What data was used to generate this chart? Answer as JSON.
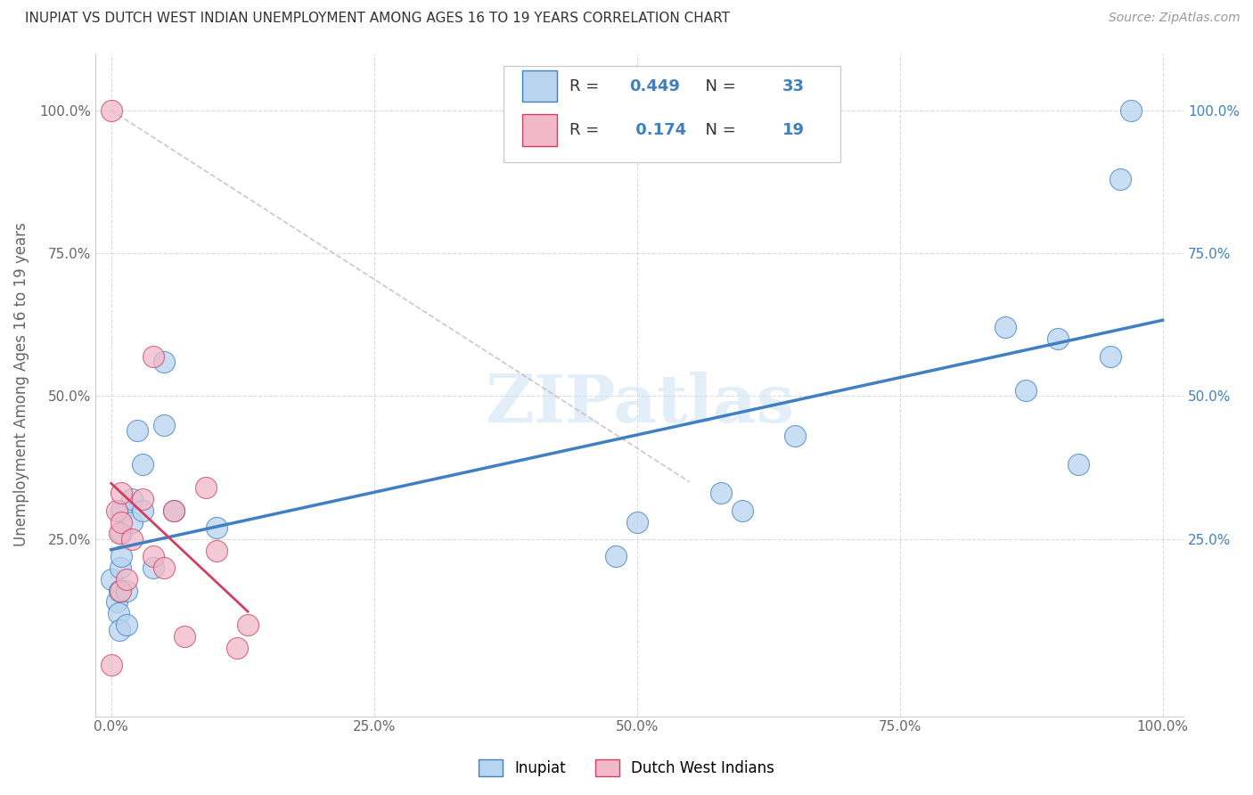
{
  "title": "INUPIAT VS DUTCH WEST INDIAN UNEMPLOYMENT AMONG AGES 16 TO 19 YEARS CORRELATION CHART",
  "source": "Source: ZipAtlas.com",
  "ylabel": "Unemployment Among Ages 16 to 19 years",
  "watermark": "ZIPatlas",
  "inupiat_R": 0.449,
  "inupiat_N": 33,
  "dutch_R": 0.174,
  "dutch_N": 19,
  "inupiat_color": "#b8d4ee",
  "dutch_color": "#f0b8c8",
  "inupiat_line_color": "#4080c0",
  "dutch_line_color": "#d04060",
  "inupiat_x": [
    0.0,
    0.005,
    0.007,
    0.008,
    0.008,
    0.009,
    0.01,
    0.01,
    0.01,
    0.015,
    0.015,
    0.02,
    0.02,
    0.025,
    0.03,
    0.03,
    0.04,
    0.05,
    0.05,
    0.06,
    0.1,
    0.48,
    0.5,
    0.58,
    0.6,
    0.65,
    0.85,
    0.87,
    0.9,
    0.92,
    0.95,
    0.96,
    0.97
  ],
  "inupiat_y": [
    0.18,
    0.14,
    0.12,
    0.09,
    0.16,
    0.2,
    0.22,
    0.26,
    0.3,
    0.1,
    0.16,
    0.28,
    0.32,
    0.44,
    0.3,
    0.38,
    0.2,
    0.45,
    0.56,
    0.3,
    0.27,
    0.22,
    0.28,
    0.33,
    0.3,
    0.43,
    0.62,
    0.51,
    0.6,
    0.38,
    0.57,
    0.88,
    1.0
  ],
  "dutch_x": [
    0.0,
    0.0,
    0.005,
    0.008,
    0.009,
    0.01,
    0.01,
    0.015,
    0.02,
    0.03,
    0.04,
    0.04,
    0.05,
    0.06,
    0.07,
    0.09,
    0.1,
    0.12,
    0.13
  ],
  "dutch_y": [
    1.0,
    0.03,
    0.3,
    0.26,
    0.16,
    0.28,
    0.33,
    0.18,
    0.25,
    0.32,
    0.57,
    0.22,
    0.2,
    0.3,
    0.08,
    0.34,
    0.23,
    0.06,
    0.1
  ],
  "xlim": [
    -0.015,
    1.02
  ],
  "ylim": [
    -0.06,
    1.1
  ],
  "xticks": [
    0.0,
    0.25,
    0.5,
    0.75,
    1.0
  ],
  "xtick_labels": [
    "0.0%",
    "25.0%",
    "50.0%",
    "75.0%",
    "100.0%"
  ],
  "yticks": [
    0.25,
    0.5,
    0.75,
    1.0
  ],
  "ytick_labels_left": [
    "25.0%",
    "50.0%",
    "75.0%",
    "100.0%"
  ],
  "ytick_labels_right": [
    "25.0%",
    "50.0%",
    "75.0%",
    "100.0%"
  ],
  "background_color": "#ffffff",
  "grid_color": "#cccccc",
  "title_color": "#333333",
  "axis_label_color": "#666666",
  "right_tick_color": "#4080c0"
}
